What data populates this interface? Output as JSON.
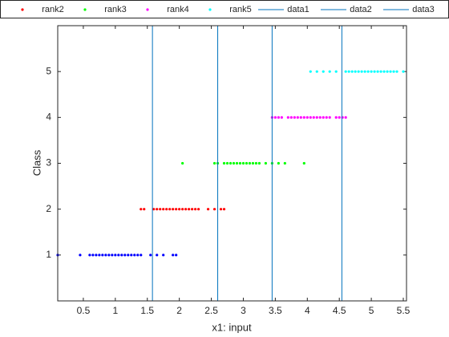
{
  "chart_data": {
    "type": "scatter",
    "xlabel": "x1: input",
    "ylabel": "Class",
    "xlim": [
      0.1,
      5.55
    ],
    "ylim": [
      0,
      6
    ],
    "xticks": [
      0.5,
      1,
      1.5,
      2,
      2.5,
      3,
      3.5,
      4,
      4.5,
      5,
      5.5
    ],
    "yticks": [
      1,
      2,
      3,
      4,
      5
    ],
    "series": [
      {
        "color": "#0000ff",
        "x": [
          0.1,
          0.45,
          0.6,
          0.65,
          0.7,
          0.75,
          0.8,
          0.85,
          0.9,
          0.95,
          1.0,
          1.05,
          1.1,
          1.15,
          1.2,
          1.25,
          1.3,
          1.35,
          1.4,
          1.55,
          1.65,
          1.75,
          1.9,
          1.95
        ],
        "values": [
          1,
          1,
          1,
          1,
          1,
          1,
          1,
          1,
          1,
          1,
          1,
          1,
          1,
          1,
          1,
          1,
          1,
          1,
          1,
          1,
          1,
          1,
          1,
          1
        ]
      },
      {
        "name": "rank2",
        "color": "#ff0000",
        "x": [
          1.4,
          1.45,
          1.6,
          1.65,
          1.7,
          1.75,
          1.8,
          1.85,
          1.9,
          1.95,
          2.0,
          2.05,
          2.1,
          2.15,
          2.2,
          2.25,
          2.3,
          2.45,
          2.55,
          2.65,
          2.7
        ],
        "values": [
          2,
          2,
          2,
          2,
          2,
          2,
          2,
          2,
          2,
          2,
          2,
          2,
          2,
          2,
          2,
          2,
          2,
          2,
          2,
          2,
          2
        ]
      },
      {
        "name": "rank3",
        "color": "#00ff00",
        "x": [
          2.05,
          2.55,
          2.6,
          2.7,
          2.75,
          2.8,
          2.85,
          2.9,
          2.95,
          3.0,
          3.05,
          3.1,
          3.15,
          3.2,
          3.25,
          3.35,
          3.45,
          3.55,
          3.65,
          3.95
        ],
        "values": [
          3,
          3,
          3,
          3,
          3,
          3,
          3,
          3,
          3,
          3,
          3,
          3,
          3,
          3,
          3,
          3,
          3,
          3,
          3,
          3
        ]
      },
      {
        "name": "rank4",
        "color": "#ff00ff",
        "x": [
          3.45,
          3.5,
          3.55,
          3.6,
          3.7,
          3.75,
          3.8,
          3.85,
          3.9,
          3.95,
          4.0,
          4.05,
          4.1,
          4.15,
          4.2,
          4.25,
          4.3,
          4.35,
          4.45,
          4.5,
          4.55,
          4.6
        ],
        "values": [
          4,
          4,
          4,
          4,
          4,
          4,
          4,
          4,
          4,
          4,
          4,
          4,
          4,
          4,
          4,
          4,
          4,
          4,
          4,
          4,
          4,
          4
        ]
      },
      {
        "name": "rank5",
        "color": "#00ffff",
        "x": [
          4.05,
          4.15,
          4.25,
          4.35,
          4.45,
          4.6,
          4.65,
          4.7,
          4.75,
          4.8,
          4.85,
          4.9,
          4.95,
          5.0,
          5.05,
          5.1,
          5.15,
          5.2,
          5.25,
          5.3,
          5.35,
          5.4,
          5.5
        ],
        "values": [
          5,
          5,
          5,
          5,
          5,
          5,
          5,
          5,
          5,
          5,
          5,
          5,
          5,
          5,
          5,
          5,
          5,
          5,
          5,
          5,
          5,
          5,
          5
        ]
      }
    ],
    "vlines": [
      {
        "name": "data1",
        "color": "#0072bd",
        "x": 1.58
      },
      {
        "name": "data2",
        "color": "#0072bd",
        "x": 2.6
      },
      {
        "name": "data3",
        "color": "#0072bd",
        "x": 3.45
      },
      {
        "color": "#0072bd",
        "x": 4.54
      }
    ]
  }
}
